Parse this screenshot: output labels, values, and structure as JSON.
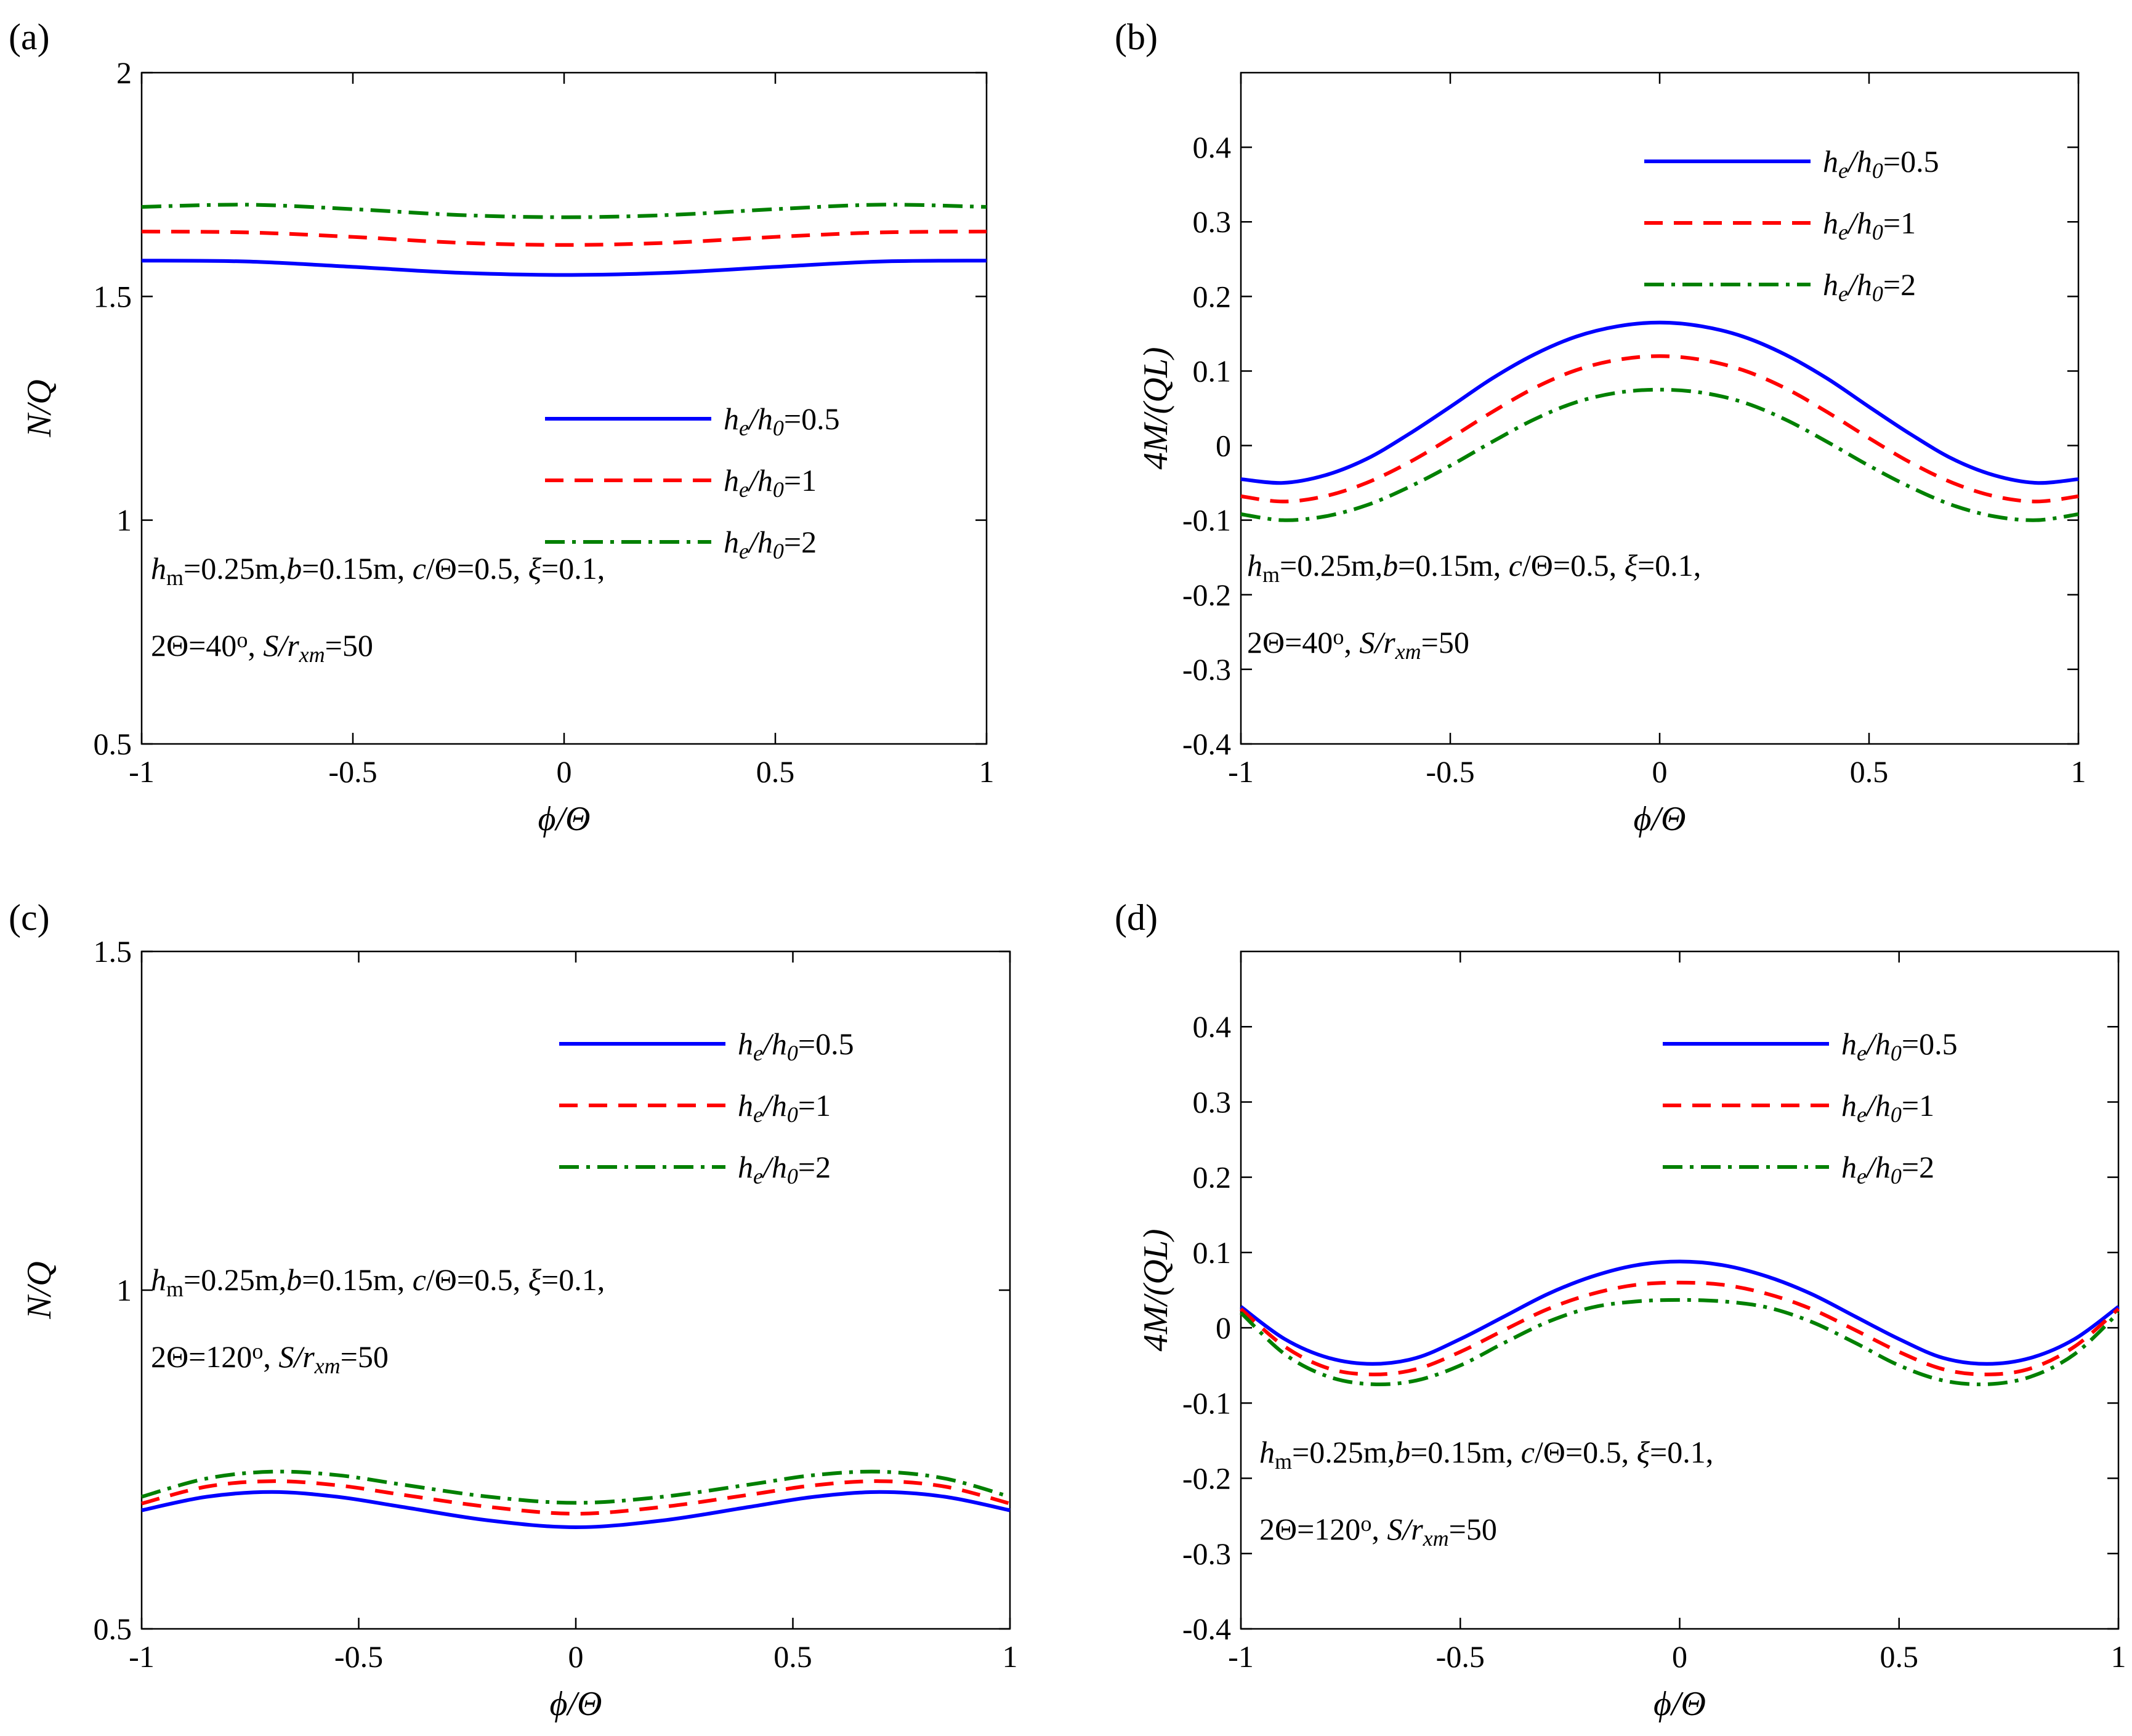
{
  "chart_data": [
    {
      "panel_label": "(a)",
      "type": "line",
      "xlabel": "ϕ/Θ",
      "ylabel": "N/Q",
      "xlim": [
        -1,
        1
      ],
      "ylim": [
        0.5,
        2
      ],
      "xticks": [
        "-1",
        "-0.5",
        "0",
        "0.5",
        "1"
      ],
      "yticks": [
        "0.5",
        "1",
        "1.5",
        "2"
      ],
      "annotation": {
        "line1": [
          {
            "t": "h",
            "s": "i"
          },
          {
            "t": "m",
            "s": "sub"
          },
          {
            "t": "=0.25m,"
          },
          {
            "t": "b",
            "s": "i"
          },
          {
            "t": "=0.15m, "
          },
          {
            "t": "c",
            "s": "i"
          },
          {
            "t": "/Θ=0.5, "
          },
          {
            "t": "ξ",
            "s": "i"
          },
          {
            "t": "=0.1,"
          }
        ],
        "line2": [
          {
            "t": "2Θ=40"
          },
          {
            "t": "o",
            "s": "sup"
          },
          {
            "t": ", "
          },
          {
            "t": "S/r",
            "s": "i"
          },
          {
            "t": "xm",
            "s": "isub"
          },
          {
            "t": "=50"
          }
        ]
      },
      "legend": {
        "placement": "center-right",
        "entries": [
          "h_e/h_0=0.5",
          "h_e/h_0=1",
          "h_e/h_0=2"
        ]
      },
      "series": [
        {
          "name": "h_e/h_0=0.5",
          "color": "#0000FF",
          "style": "solid",
          "x": [
            -1,
            -0.75,
            -0.5,
            -0.25,
            0,
            0.25,
            0.5,
            0.75,
            1
          ],
          "y": [
            1.58,
            1.578,
            1.566,
            1.553,
            1.548,
            1.553,
            1.566,
            1.578,
            1.58
          ]
        },
        {
          "name": "h_e/h_0=1",
          "color": "#FF0000",
          "style": "dashed",
          "x": [
            -1,
            -0.75,
            -0.5,
            -0.25,
            0,
            0.25,
            0.5,
            0.75,
            1
          ],
          "y": [
            1.645,
            1.643,
            1.633,
            1.62,
            1.615,
            1.62,
            1.633,
            1.643,
            1.645
          ]
        },
        {
          "name": "h_e/h_0=2",
          "color": "#008000",
          "style": "dashdot",
          "x": [
            -1,
            -0.75,
            -0.5,
            -0.25,
            0,
            0.25,
            0.5,
            0.75,
            1
          ],
          "y": [
            1.7,
            1.705,
            1.695,
            1.682,
            1.677,
            1.682,
            1.695,
            1.705,
            1.7
          ]
        }
      ]
    },
    {
      "panel_label": "(b)",
      "type": "line",
      "xlabel": "ϕ/Θ",
      "ylabel": "4M/(QL)",
      "xlim": [
        -1,
        1
      ],
      "ylim": [
        -0.4,
        0.5
      ],
      "xticks": [
        "-1",
        "-0.5",
        "0",
        "0.5",
        "1"
      ],
      "yticks": [
        "-0.4",
        "-0.3",
        "-0.2",
        "-0.1",
        "0",
        "0.1",
        "0.2",
        "0.3",
        "0.4"
      ],
      "annotation": {
        "line1": [
          {
            "t": "h",
            "s": "i"
          },
          {
            "t": "m",
            "s": "sub"
          },
          {
            "t": "=0.25m,"
          },
          {
            "t": "b",
            "s": "i"
          },
          {
            "t": "=0.15m, "
          },
          {
            "t": "c",
            "s": "i"
          },
          {
            "t": "/Θ=0.5, "
          },
          {
            "t": "ξ",
            "s": "i"
          },
          {
            "t": "=0.1,"
          }
        ],
        "line2": [
          {
            "t": "2Θ=40"
          },
          {
            "t": "o",
            "s": "sup"
          },
          {
            "t": ", "
          },
          {
            "t": "S/r",
            "s": "i"
          },
          {
            "t": "xm",
            "s": "isub"
          },
          {
            "t": "=50"
          }
        ]
      },
      "legend": {
        "placement": "top-right",
        "entries": [
          "h_e/h_0=0.5",
          "h_e/h_0=1",
          "h_e/h_0=2"
        ]
      },
      "series": [
        {
          "name": "h_e/h_0=0.5",
          "color": "#0000FF",
          "style": "solid",
          "x": [
            -1,
            -0.9,
            -0.8,
            -0.7,
            -0.6,
            -0.5,
            -0.4,
            -0.3,
            -0.2,
            -0.1,
            0,
            0.1,
            0.2,
            0.3,
            0.4,
            0.5,
            0.6,
            0.7,
            0.8,
            0.9,
            1
          ],
          "y": [
            -0.045,
            -0.05,
            -0.04,
            -0.018,
            0.015,
            0.052,
            0.09,
            0.122,
            0.146,
            0.16,
            0.165,
            0.16,
            0.146,
            0.122,
            0.09,
            0.052,
            0.015,
            -0.018,
            -0.04,
            -0.05,
            -0.045
          ]
        },
        {
          "name": "h_e/h_0=1",
          "color": "#FF0000",
          "style": "dashed",
          "x": [
            -1,
            -0.9,
            -0.8,
            -0.7,
            -0.6,
            -0.5,
            -0.4,
            -0.3,
            -0.2,
            -0.1,
            0,
            0.1,
            0.2,
            0.3,
            0.4,
            0.5,
            0.6,
            0.7,
            0.8,
            0.9,
            1
          ],
          "y": [
            -0.068,
            -0.075,
            -0.068,
            -0.05,
            -0.023,
            0.01,
            0.045,
            0.077,
            0.101,
            0.115,
            0.12,
            0.115,
            0.101,
            0.077,
            0.045,
            0.01,
            -0.023,
            -0.05,
            -0.068,
            -0.075,
            -0.068
          ]
        },
        {
          "name": "h_e/h_0=2",
          "color": "#008000",
          "style": "dashdot",
          "x": [
            -1,
            -0.9,
            -0.8,
            -0.7,
            -0.6,
            -0.5,
            -0.4,
            -0.3,
            -0.2,
            -0.1,
            0,
            0.1,
            0.2,
            0.3,
            0.4,
            0.5,
            0.6,
            0.7,
            0.8,
            0.9,
            1
          ],
          "y": [
            -0.092,
            -0.1,
            -0.095,
            -0.08,
            -0.056,
            -0.027,
            0.005,
            0.035,
            0.058,
            0.071,
            0.075,
            0.071,
            0.058,
            0.035,
            0.005,
            -0.027,
            -0.056,
            -0.08,
            -0.095,
            -0.1,
            -0.092
          ]
        }
      ]
    },
    {
      "panel_label": "(c)",
      "type": "line",
      "xlabel": "ϕ/Θ",
      "ylabel": "N/Q",
      "xlim": [
        -1,
        1
      ],
      "ylim": [
        0.5,
        1.5
      ],
      "xticks": [
        "-1",
        "-0.5",
        "0",
        "0.5",
        "1"
      ],
      "yticks": [
        "0.5",
        "1",
        "1.5"
      ],
      "annotation": {
        "line1": [
          {
            "t": "h",
            "s": "i"
          },
          {
            "t": "m",
            "s": "sub"
          },
          {
            "t": "=0.25m,"
          },
          {
            "t": "b",
            "s": "i"
          },
          {
            "t": "=0.15m, "
          },
          {
            "t": "c",
            "s": "i"
          },
          {
            "t": "/Θ=0.5, "
          },
          {
            "t": "ξ",
            "s": "i"
          },
          {
            "t": "=0.1,"
          }
        ],
        "line2": [
          {
            "t": "2Θ=120"
          },
          {
            "t": "o",
            "s": "sup"
          },
          {
            "t": ", "
          },
          {
            "t": "S/r",
            "s": "i"
          },
          {
            "t": "xm",
            "s": "isub"
          },
          {
            "t": "=50"
          }
        ]
      },
      "legend": {
        "placement": "top-right",
        "entries": [
          "h_e/h_0=0.5",
          "h_e/h_0=1",
          "h_e/h_0=2"
        ]
      },
      "series": [
        {
          "name": "h_e/h_0=0.5",
          "color": "#0000FF",
          "style": "solid",
          "x": [
            -1,
            -0.85,
            -0.7,
            -0.55,
            -0.4,
            -0.2,
            0,
            0.2,
            0.4,
            0.55,
            0.7,
            0.85,
            1
          ],
          "y": [
            0.675,
            0.695,
            0.702,
            0.695,
            0.68,
            0.66,
            0.65,
            0.66,
            0.68,
            0.695,
            0.702,
            0.695,
            0.675
          ]
        },
        {
          "name": "h_e/h_0=1",
          "color": "#FF0000",
          "style": "dashed",
          "x": [
            -1,
            -0.85,
            -0.7,
            -0.55,
            -0.4,
            -0.2,
            0,
            0.2,
            0.4,
            0.55,
            0.7,
            0.85,
            1
          ],
          "y": [
            0.685,
            0.71,
            0.718,
            0.712,
            0.698,
            0.68,
            0.67,
            0.68,
            0.698,
            0.712,
            0.718,
            0.71,
            0.685
          ]
        },
        {
          "name": "h_e/h_0=2",
          "color": "#008000",
          "style": "dashdot",
          "x": [
            -1,
            -0.85,
            -0.7,
            -0.55,
            -0.4,
            -0.2,
            0,
            0.2,
            0.4,
            0.55,
            0.7,
            0.85,
            1
          ],
          "y": [
            0.695,
            0.722,
            0.732,
            0.727,
            0.713,
            0.695,
            0.686,
            0.695,
            0.713,
            0.727,
            0.732,
            0.722,
            0.695
          ]
        }
      ]
    },
    {
      "panel_label": "(d)",
      "type": "line",
      "xlabel": "ϕ/Θ",
      "ylabel": "4M/(QL)",
      "xlim": [
        -1,
        1
      ],
      "ylim": [
        -0.4,
        0.5
      ],
      "xticks": [
        "-1",
        "-0.5",
        "0",
        "0.5",
        "1"
      ],
      "yticks": [
        "-0.4",
        "-0.3",
        "-0.2",
        "-0.1",
        "0",
        "0.1",
        "0.2",
        "0.3",
        "0.4"
      ],
      "annotation": {
        "line1": [
          {
            "t": "h",
            "s": "i"
          },
          {
            "t": "m",
            "s": "sub"
          },
          {
            "t": "=0.25m,"
          },
          {
            "t": "b",
            "s": "i"
          },
          {
            "t": "=0.15m, "
          },
          {
            "t": "c",
            "s": "i"
          },
          {
            "t": "/Θ=0.5, "
          },
          {
            "t": "ξ",
            "s": "i"
          },
          {
            "t": "=0.1,"
          }
        ],
        "line2": [
          {
            "t": "2Θ=120"
          },
          {
            "t": "o",
            "s": "sup"
          },
          {
            "t": ", "
          },
          {
            "t": "S/r",
            "s": "i"
          },
          {
            "t": "xm",
            "s": "isub"
          },
          {
            "t": "=50"
          }
        ]
      },
      "legend": {
        "placement": "top-right",
        "entries": [
          "h_e/h_0=0.5",
          "h_e/h_0=1",
          "h_e/h_0=2"
        ]
      },
      "series": [
        {
          "name": "h_e/h_0=0.5",
          "color": "#0000FF",
          "style": "solid",
          "x": [
            -1,
            -0.9,
            -0.8,
            -0.7,
            -0.6,
            -0.5,
            -0.4,
            -0.3,
            -0.2,
            -0.1,
            0,
            0.1,
            0.2,
            0.3,
            0.4,
            0.5,
            0.6,
            0.7,
            0.8,
            0.9,
            1
          ],
          "y": [
            0.028,
            -0.015,
            -0.04,
            -0.048,
            -0.04,
            -0.015,
            0.015,
            0.045,
            0.068,
            0.083,
            0.088,
            0.083,
            0.068,
            0.045,
            0.015,
            -0.015,
            -0.04,
            -0.048,
            -0.04,
            -0.015,
            0.028
          ]
        },
        {
          "name": "h_e/h_0=1",
          "color": "#FF0000",
          "style": "dashed",
          "x": [
            -1,
            -0.9,
            -0.8,
            -0.7,
            -0.6,
            -0.5,
            -0.4,
            -0.3,
            -0.2,
            -0.1,
            0,
            0.1,
            0.2,
            0.3,
            0.4,
            0.5,
            0.6,
            0.7,
            0.8,
            0.9,
            1
          ],
          "y": [
            0.025,
            -0.025,
            -0.054,
            -0.062,
            -0.055,
            -0.032,
            -0.003,
            0.025,
            0.045,
            0.057,
            0.06,
            0.057,
            0.045,
            0.025,
            -0.003,
            -0.032,
            -0.055,
            -0.062,
            -0.054,
            -0.025,
            0.025
          ]
        },
        {
          "name": "h_e/h_0=2",
          "color": "#008000",
          "style": "dashdot",
          "x": [
            -1,
            -0.9,
            -0.8,
            -0.7,
            -0.6,
            -0.5,
            -0.4,
            -0.3,
            -0.2,
            -0.1,
            0,
            0.1,
            0.2,
            0.3,
            0.4,
            0.5,
            0.6,
            0.7,
            0.8,
            0.9,
            1
          ],
          "y": [
            0.02,
            -0.035,
            -0.065,
            -0.075,
            -0.07,
            -0.05,
            -0.02,
            0.008,
            0.027,
            0.035,
            0.037,
            0.035,
            0.027,
            0.008,
            -0.02,
            -0.05,
            -0.07,
            -0.075,
            -0.065,
            -0.035,
            0.02
          ]
        }
      ]
    }
  ]
}
